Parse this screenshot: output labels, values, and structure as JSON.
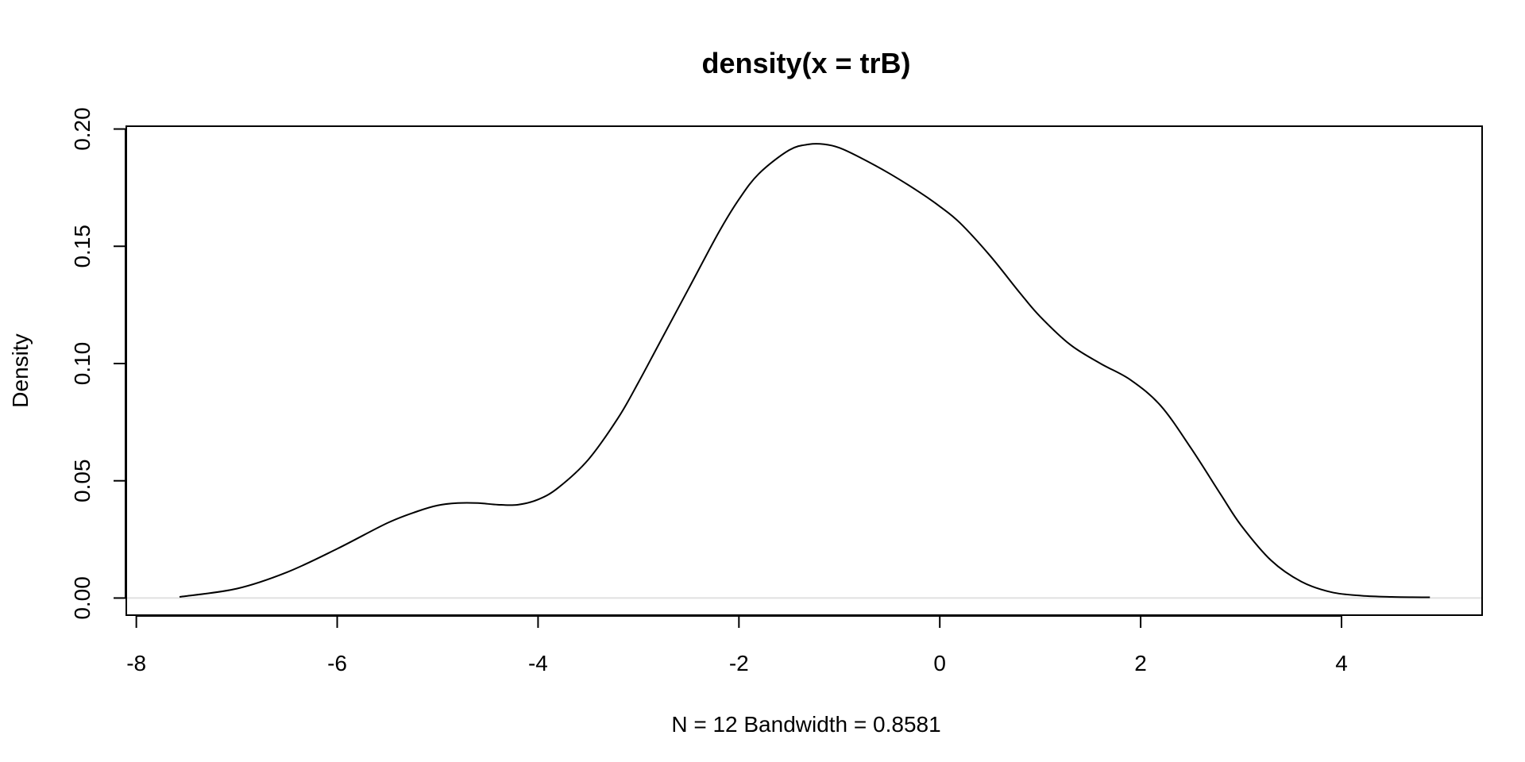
{
  "chart_data": {
    "type": "line",
    "title": "density(x = trB)",
    "xlabel": "N = 12   Bandwidth = 0.8581",
    "ylabel": "Density",
    "xlim": [
      -8.1,
      5.4
    ],
    "ylim": [
      -0.0073,
      0.2012
    ],
    "xticks": [
      "-8",
      "-6",
      "-4",
      "-2",
      "0",
      "2",
      "4"
    ],
    "xtick_values": [
      -8,
      -6,
      -4,
      -2,
      0,
      2,
      4
    ],
    "yticks": [
      "0.00",
      "0.05",
      "0.10",
      "0.15",
      "0.20"
    ],
    "ytick_values": [
      0,
      0.05,
      0.1,
      0.15,
      0.2
    ],
    "zero_line": true,
    "grid": false,
    "series": [
      {
        "color": "#000000",
        "x": [
          -7.57,
          -7.0,
          -6.5,
          -6.0,
          -5.5,
          -5.2,
          -5.0,
          -4.8,
          -4.6,
          -4.4,
          -4.2,
          -4.0,
          -3.8,
          -3.5,
          -3.2,
          -3.0,
          -2.8,
          -2.5,
          -2.2,
          -2.0,
          -1.8,
          -1.5,
          -1.3,
          -1.15,
          -1.0,
          -0.8,
          -0.5,
          -0.2,
          0.0,
          0.2,
          0.5,
          0.8,
          1.0,
          1.3,
          1.6,
          1.9,
          2.2,
          2.5,
          2.8,
          3.0,
          3.3,
          3.6,
          3.9,
          4.2,
          4.5,
          4.88
        ],
        "y": [
          0.0005,
          0.004,
          0.011,
          0.021,
          0.032,
          0.037,
          0.0395,
          0.0405,
          0.0405,
          0.0398,
          0.0398,
          0.042,
          0.047,
          0.059,
          0.077,
          0.092,
          0.108,
          0.132,
          0.156,
          0.17,
          0.181,
          0.191,
          0.1935,
          0.1935,
          0.192,
          0.188,
          0.181,
          0.173,
          0.167,
          0.16,
          0.146,
          0.13,
          0.12,
          0.108,
          0.1,
          0.093,
          0.082,
          0.064,
          0.044,
          0.031,
          0.016,
          0.007,
          0.0025,
          0.001,
          0.0005,
          0.0003
        ]
      }
    ]
  }
}
